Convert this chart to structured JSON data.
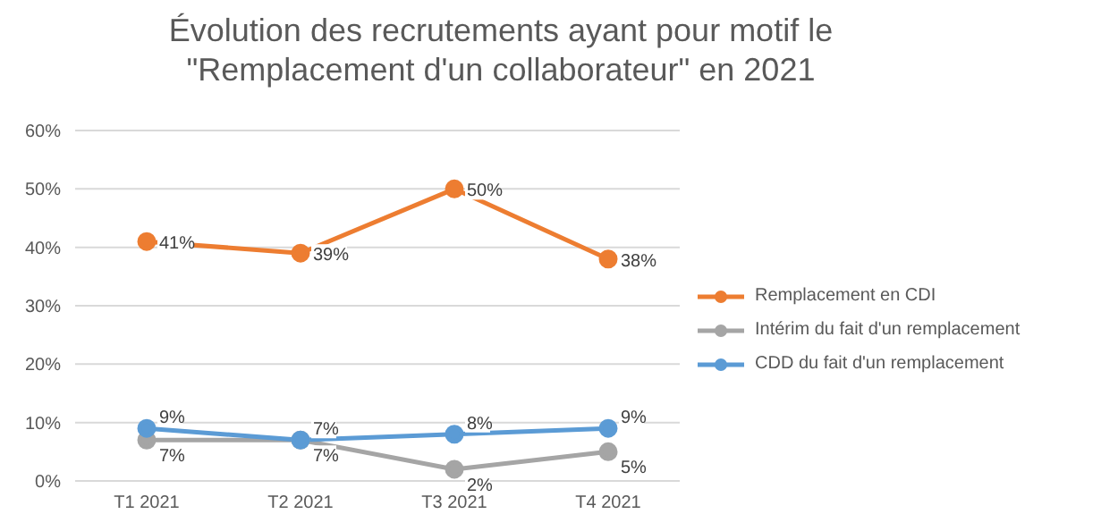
{
  "chart_data": {
    "type": "line",
    "title": "Évolution des recrutements ayant pour motif le \"Remplacement d'un collaborateur\" en 2021",
    "categories": [
      "T1 2021",
      "T2  2021",
      "T3  2021",
      "T4  2021"
    ],
    "series": [
      {
        "name": "Remplacement en CDI",
        "color": "#ed7d31",
        "values": [
          41,
          39,
          50,
          38
        ],
        "value_labels": [
          "41%",
          "39%",
          "50%",
          "38%"
        ]
      },
      {
        "name": "Intérim du fait d'un remplacement",
        "color": "#a5a5a5",
        "values": [
          7,
          7,
          2,
          5
        ],
        "value_labels": [
          "7%",
          "7%",
          "2%",
          "5%"
        ]
      },
      {
        "name": "CDD du fait d'un remplacement",
        "color": "#5b9bd5",
        "values": [
          9,
          7,
          8,
          9
        ],
        "value_labels": [
          "9%",
          "7%",
          "8%",
          "9%"
        ]
      }
    ],
    "ylim": [
      0,
      60
    ],
    "yticks": [
      {
        "value": 0,
        "label": "0%"
      },
      {
        "value": 10,
        "label": "10%"
      },
      {
        "value": 20,
        "label": "20%"
      },
      {
        "value": 30,
        "label": "30%"
      },
      {
        "value": 40,
        "label": "40%"
      },
      {
        "value": 50,
        "label": "50%"
      },
      {
        "value": 60,
        "label": "60%"
      }
    ],
    "grid": "y",
    "legend": "right",
    "marker": "circle",
    "line_style": "solid"
  }
}
